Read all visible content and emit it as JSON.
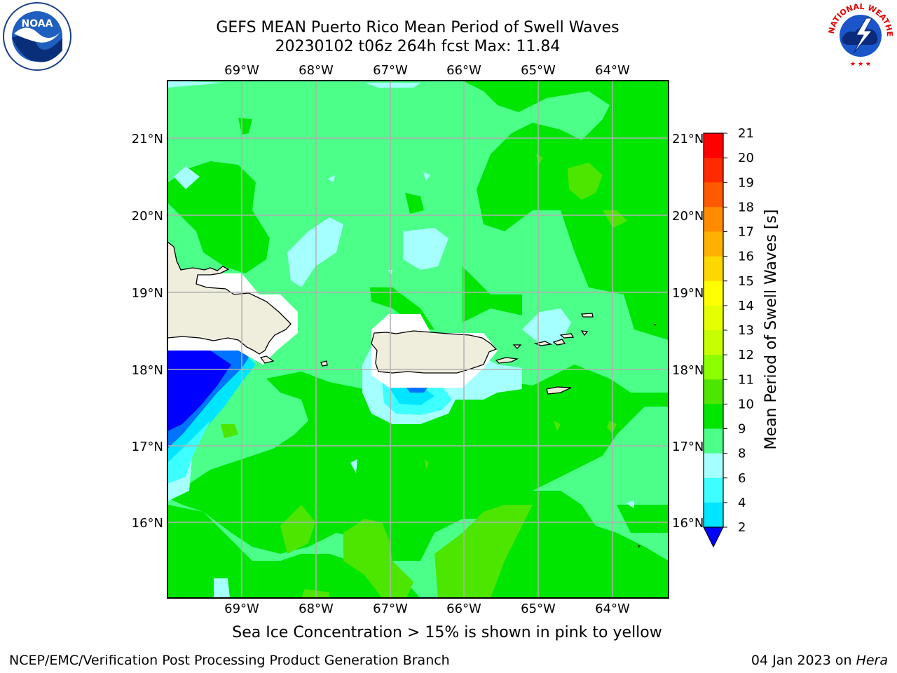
{
  "title": {
    "line1": "GEFS MEAN Puerto Rico Mean Period of Swell Waves",
    "line2": "20230102 t06z 264h fcst   Max: 11.84"
  },
  "map": {
    "lon_ticks": [
      "69°W",
      "68°W",
      "67°W",
      "66°W",
      "65°W",
      "64°W"
    ],
    "lat_ticks": [
      "21°N",
      "20°N",
      "19°N",
      "18°N",
      "17°N",
      "16°N"
    ],
    "lon_values": [
      -69,
      -68,
      -67,
      -66,
      -65,
      -64
    ],
    "lat_values": [
      21,
      20,
      19,
      18,
      17,
      16
    ],
    "lon_range": [
      -70,
      -63.25
    ],
    "lat_range": [
      15,
      21.75
    ],
    "dominant_field": "period 9-11 s; lighter blue 8-9 s near coasts; deep blue 2-4 s west of 68.5W near 17-18N"
  },
  "colorbar": {
    "label": "Mean Period of Swell Waves [s]",
    "levels": [
      "2",
      "4",
      "6",
      "7",
      "8",
      "9",
      "10",
      "11",
      "12",
      "13",
      "14",
      "15",
      "16",
      "17",
      "18",
      "19",
      "20",
      "21"
    ],
    "tick_labels": [
      "21",
      "20",
      "19",
      "18",
      "17",
      "16",
      "15",
      "14",
      "13",
      "12",
      "11",
      "10",
      "9",
      "8",
      "6",
      "4",
      "2"
    ],
    "colors": [
      "#0000ff",
      "#0073ff",
      "#00e5ff",
      "#3dffff",
      "#a6ffff",
      "#4cff89",
      "#00e600",
      "#4de600",
      "#8cff00",
      "#c8ff00",
      "#e6ff00",
      "#ffff00",
      "#ffd700",
      "#ffb000",
      "#ff8c00",
      "#ff5a00",
      "#ff2a00",
      "#ff0000"
    ],
    "extend_color": "#0000ff"
  },
  "sea_ice_note": "Sea Ice Concentration > 15% is shown in pink to yellow",
  "footer": {
    "left": "NCEP/EMC/Verification Post Processing Product Generation Branch",
    "date": "04 Jan 2023 on ",
    "host": "Hera"
  },
  "logos": {
    "noaa": "NOAA",
    "nws_ring": "NATIONAL WEATHER SERVICE"
  }
}
